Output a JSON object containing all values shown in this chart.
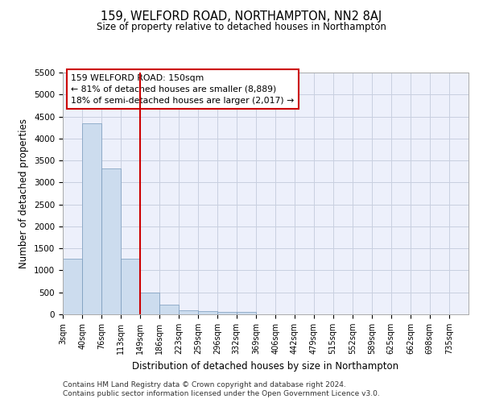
{
  "title": "159, WELFORD ROAD, NORTHAMPTON, NN2 8AJ",
  "subtitle": "Size of property relative to detached houses in Northampton",
  "xlabel": "Distribution of detached houses by size in Northampton",
  "ylabel": "Number of detached properties",
  "footnote1": "Contains HM Land Registry data © Crown copyright and database right 2024.",
  "footnote2": "Contains public sector information licensed under the Open Government Licence v3.0.",
  "annotation_line1": "159 WELFORD ROAD: 150sqm",
  "annotation_line2": "← 81% of detached houses are smaller (8,889)",
  "annotation_line3": "18% of semi-detached houses are larger (2,017) →",
  "bar_color": "#ccdcee",
  "bar_edge_color": "#7799bb",
  "grid_color": "#c8cfe0",
  "bg_color": "#edf0fb",
  "red_line_color": "#cc0000",
  "annotation_box_color": "#cc0000",
  "bin_width": 37,
  "bin_starts": [
    3,
    40,
    76,
    113,
    149,
    186,
    223,
    259,
    296,
    332,
    369,
    406,
    442,
    479,
    515,
    552,
    589,
    625,
    662,
    698
  ],
  "bar_heights": [
    1270,
    4350,
    3310,
    1270,
    490,
    220,
    90,
    80,
    60,
    50,
    0,
    0,
    0,
    0,
    0,
    0,
    0,
    0,
    0,
    0
  ],
  "red_line_x": 149,
  "ylim": [
    0,
    5500
  ],
  "yticks": [
    0,
    500,
    1000,
    1500,
    2000,
    2500,
    3000,
    3500,
    4000,
    4500,
    5000,
    5500
  ],
  "xtick_labels": [
    "3sqm",
    "40sqm",
    "76sqm",
    "113sqm",
    "149sqm",
    "186sqm",
    "223sqm",
    "259sqm",
    "296sqm",
    "332sqm",
    "369sqm",
    "406sqm",
    "442sqm",
    "479sqm",
    "515sqm",
    "552sqm",
    "589sqm",
    "625sqm",
    "662sqm",
    "698sqm",
    "735sqm"
  ],
  "xlim_min": 3,
  "xlim_max": 772
}
